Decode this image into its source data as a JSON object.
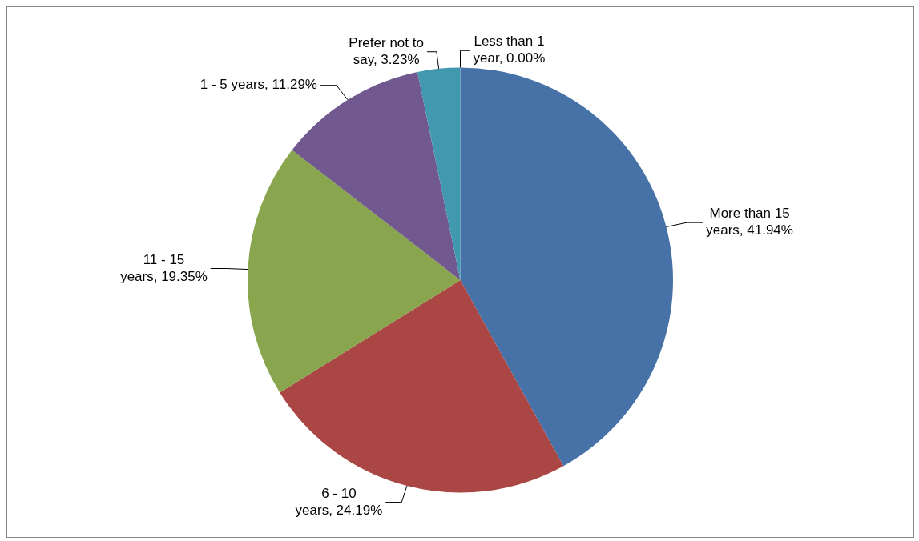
{
  "chart_data": {
    "type": "pie",
    "categories": [
      "More than 15 years",
      "6 - 10 years",
      "11 - 15 years",
      "1 - 5 years",
      "Prefer not to say",
      "Less than 1 year"
    ],
    "values": [
      41.94,
      24.19,
      19.35,
      11.29,
      3.23,
      0.0
    ],
    "colors": [
      "#4672a8",
      "#aa4644",
      "#89a54e",
      "#71588f",
      "#4198af",
      "#db843d"
    ],
    "value_labels": [
      "41.94%",
      "24.19%",
      "19.35%",
      "11.29%",
      "3.23%",
      "0.00%"
    ]
  }
}
